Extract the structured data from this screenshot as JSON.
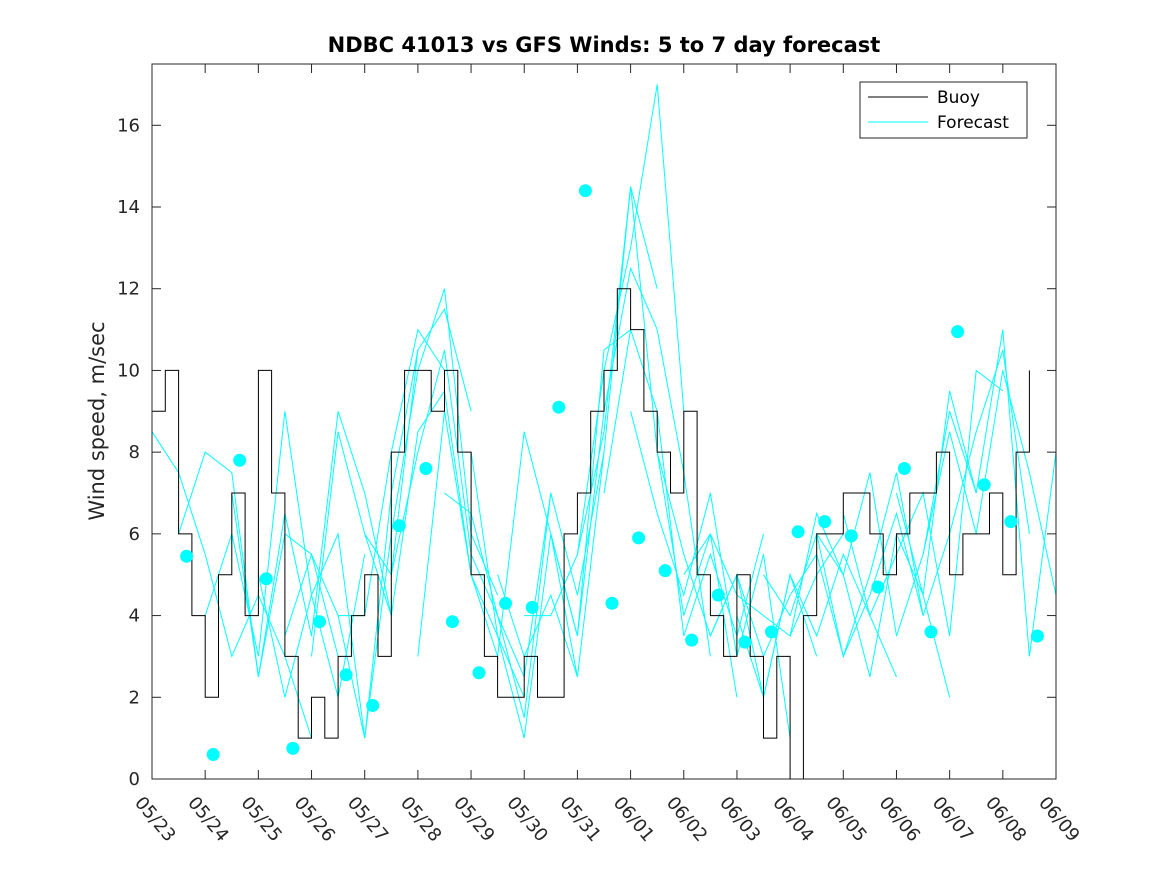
{
  "chart_data": {
    "type": "line",
    "title": "NDBC 41013 vs GFS Winds: 5 to 7 day forecast",
    "xlabel": "",
    "ylabel": "Wind speed, m/sec",
    "x_ticks": [
      "05/23",
      "05/24",
      "05/25",
      "05/26",
      "05/27",
      "05/28",
      "05/29",
      "05/30",
      "05/31",
      "06/01",
      "06/02",
      "06/03",
      "06/04",
      "06/05",
      "06/06",
      "06/07",
      "06/08",
      "06/09"
    ],
    "xlim_days": [
      0,
      17
    ],
    "ylim": [
      0,
      17.5
    ],
    "y_ticks": [
      0,
      2,
      4,
      6,
      8,
      10,
      12,
      14,
      16
    ],
    "grid": false,
    "legend_position": "top-right",
    "colors": {
      "buoy": "#000000",
      "forecast": "#00ffff"
    },
    "series": [
      {
        "name": "Buoy",
        "x_days": [
          0.0,
          0.25,
          0.5,
          0.75,
          1.0,
          1.25,
          1.5,
          1.75,
          2.0,
          2.25,
          2.5,
          2.75,
          3.0,
          3.25,
          3.5,
          3.75,
          4.0,
          4.25,
          4.5,
          4.75,
          5.0,
          5.25,
          5.5,
          5.75,
          6.0,
          6.25,
          6.5,
          6.75,
          7.0,
          7.25,
          7.5,
          7.75,
          8.0,
          8.25,
          8.5,
          8.75,
          9.0,
          9.25,
          9.5,
          9.75,
          10.0,
          10.25,
          10.5,
          10.75,
          11.0,
          11.25,
          11.5,
          11.75,
          12.0,
          12.25,
          12.5,
          12.75,
          13.0,
          13.25,
          13.5,
          13.75,
          14.0,
          14.25,
          14.5,
          14.75,
          15.0,
          15.25,
          15.5,
          15.75,
          16.0,
          16.25,
          16.5
        ],
        "values": [
          9,
          10,
          6,
          4,
          2,
          5,
          7,
          4,
          10,
          7,
          3,
          1,
          2,
          1,
          3,
          4,
          5,
          3,
          8,
          10,
          10,
          9,
          10,
          8,
          5,
          3,
          2,
          2,
          3,
          2,
          2,
          6,
          7,
          9,
          10,
          12,
          11,
          9,
          8,
          7,
          9,
          5,
          4,
          3,
          5,
          3,
          1,
          3,
          0,
          4,
          6,
          6,
          7,
          7,
          6,
          5,
          6,
          7,
          7,
          8,
          5,
          6,
          6,
          7,
          5,
          8,
          10
        ]
      },
      {
        "name": "Forecast",
        "runs": [
          {
            "x_days": [
              0.0,
              0.5,
              1.0,
              1.5,
              2.0,
              2.5,
              3.0
            ],
            "values": [
              8.5,
              7.5,
              5.5,
              3.0,
              4.5,
              3.0,
              1.0
            ]
          },
          {
            "x_days": [
              0.5,
              1.0,
              1.5,
              2.0,
              2.5,
              3.0,
              3.5
            ],
            "values": [
              6.0,
              8.0,
              7.5,
              2.5,
              6.0,
              5.5,
              3.0
            ]
          },
          {
            "x_days": [
              1.0,
              1.5,
              2.0,
              2.5,
              3.0,
              3.5,
              4.0
            ],
            "values": [
              4.0,
              6.0,
              3.0,
              9.0,
              4.5,
              2.0,
              5.5
            ]
          },
          {
            "x_days": [
              1.5,
              2.0,
              2.5,
              3.0,
              3.5,
              4.0,
              4.5
            ],
            "values": [
              7.0,
              2.5,
              6.5,
              3.5,
              9.0,
              7.0,
              4.0
            ]
          },
          {
            "x_days": [
              2.0,
              2.5,
              3.0,
              3.5,
              4.0,
              4.5,
              5.0
            ],
            "values": [
              5.0,
              2.0,
              4.5,
              6.0,
              1.0,
              7.0,
              10.5
            ]
          },
          {
            "x_days": [
              2.5,
              3.0,
              3.5,
              4.0,
              4.5,
              5.0,
              5.5
            ],
            "values": [
              3.5,
              5.5,
              4.0,
              4.0,
              8.0,
              11.0,
              10.0
            ]
          },
          {
            "x_days": [
              3.0,
              3.5,
              4.0,
              4.5,
              5.0,
              5.5,
              6.0
            ],
            "values": [
              3.0,
              8.5,
              6.0,
              5.0,
              10.5,
              11.5,
              9.0
            ]
          },
          {
            "x_days": [
              3.5,
              4.0,
              4.5,
              5.0,
              5.5,
              6.0,
              6.5
            ],
            "values": [
              4.0,
              1.0,
              6.0,
              10.0,
              12.0,
              6.0,
              4.5
            ]
          },
          {
            "x_days": [
              4.0,
              4.5,
              5.0,
              5.5,
              6.0,
              6.5,
              7.0
            ],
            "values": [
              6.0,
              4.0,
              8.5,
              9.5,
              5.0,
              3.5,
              2.0
            ]
          },
          {
            "x_days": [
              4.5,
              5.0,
              5.5,
              6.0,
              6.5,
              7.0,
              7.5
            ],
            "values": [
              5.0,
              8.0,
              10.5,
              5.5,
              4.0,
              1.5,
              7.0
            ]
          },
          {
            "x_days": [
              5.0,
              5.5,
              6.0,
              6.5,
              7.0,
              7.5,
              8.0
            ],
            "values": [
              3.0,
              9.0,
              5.0,
              3.0,
              8.5,
              6.0,
              2.5
            ]
          },
          {
            "x_days": [
              5.5,
              6.0,
              6.5,
              7.0,
              7.5,
              8.0,
              8.5
            ],
            "values": [
              7.0,
              6.5,
              4.0,
              2.5,
              7.0,
              4.5,
              8.0
            ]
          },
          {
            "x_days": [
              6.0,
              6.5,
              7.0,
              7.5,
              8.0,
              8.5,
              9.0
            ],
            "values": [
              8.0,
              3.5,
              1.0,
              6.0,
              3.5,
              10.5,
              11.0
            ]
          },
          {
            "x_days": [
              6.5,
              7.0,
              7.5,
              8.0,
              8.5,
              9.0,
              9.5
            ],
            "values": [
              5.0,
              3.0,
              4.5,
              2.5,
              8.0,
              14.5,
              12.0
            ]
          },
          {
            "x_days": [
              7.0,
              7.5,
              8.0,
              8.5,
              9.0,
              9.5,
              10.0
            ],
            "values": [
              4.0,
              4.0,
              5.5,
              10.0,
              13.0,
              17.0,
              9.0
            ]
          },
          {
            "x_days": [
              7.5,
              8.0,
              8.5,
              9.0,
              9.5,
              10.0,
              10.5
            ],
            "values": [
              6.0,
              3.5,
              9.0,
              12.5,
              11.0,
              7.5,
              3.0
            ]
          },
          {
            "x_days": [
              8.0,
              8.5,
              9.0,
              9.5,
              10.0,
              10.5,
              11.0
            ],
            "values": [
              5.5,
              8.5,
              14.5,
              8.0,
              4.0,
              6.0,
              2.0
            ]
          },
          {
            "x_days": [
              8.5,
              9.0,
              9.5,
              10.0,
              10.5,
              11.0,
              11.5
            ],
            "values": [
              7.0,
              11.0,
              9.0,
              3.5,
              5.5,
              3.5,
              6.0
            ]
          },
          {
            "x_days": [
              9.0,
              9.5,
              10.0,
              10.5,
              11.0,
              11.5,
              12.0
            ],
            "values": [
              9.0,
              6.5,
              4.5,
              7.0,
              3.0,
              5.5,
              1.0
            ]
          },
          {
            "x_days": [
              9.5,
              10.0,
              10.5,
              11.0,
              11.5,
              12.0,
              12.5
            ],
            "values": [
              8.0,
              5.5,
              3.5,
              5.0,
              2.0,
              5.0,
              3.0
            ]
          },
          {
            "x_days": [
              10.0,
              10.5,
              11.0,
              11.5,
              12.0,
              12.5,
              13.0
            ],
            "values": [
              5.0,
              6.0,
              4.5,
              4.0,
              3.5,
              5.0,
              6.0
            ]
          },
          {
            "x_days": [
              10.5,
              11.0,
              11.5,
              12.0,
              12.5,
              13.0,
              13.5
            ],
            "values": [
              3.5,
              5.0,
              3.0,
              4.5,
              5.5,
              3.0,
              5.0
            ]
          },
          {
            "x_days": [
              11.0,
              11.5,
              12.0,
              12.5,
              13.0,
              13.5,
              14.0
            ],
            "values": [
              4.0,
              2.0,
              5.0,
              3.5,
              5.5,
              4.0,
              2.5
            ]
          },
          {
            "x_days": [
              11.5,
              12.0,
              12.5,
              13.0,
              13.5,
              14.0,
              14.5
            ],
            "values": [
              5.0,
              4.0,
              6.0,
              3.0,
              4.5,
              6.5,
              4.0
            ]
          },
          {
            "x_days": [
              12.0,
              12.5,
              13.0,
              13.5,
              14.0,
              14.5,
              15.0
            ],
            "values": [
              3.5,
              6.5,
              5.0,
              2.5,
              6.0,
              4.5,
              2.0
            ]
          },
          {
            "x_days": [
              12.5,
              13.0,
              13.5,
              14.0,
              14.5,
              15.0,
              15.5
            ],
            "values": [
              6.0,
              5.0,
              7.5,
              3.5,
              5.5,
              9.0,
              7.0
            ]
          },
          {
            "x_days": [
              13.0,
              13.5,
              14.0,
              14.5,
              15.0,
              15.5,
              16.0
            ],
            "values": [
              6.5,
              4.0,
              5.5,
              7.0,
              3.5,
              10.0,
              9.5
            ]
          },
          {
            "x_days": [
              13.5,
              14.0,
              14.5,
              15.0,
              15.5,
              16.0,
              16.5
            ],
            "values": [
              5.0,
              7.5,
              4.0,
              6.0,
              8.5,
              10.5,
              6.0
            ]
          },
          {
            "x_days": [
              14.0,
              14.5,
              15.0,
              15.5,
              16.0,
              16.5,
              17.0
            ],
            "values": [
              7.0,
              4.5,
              9.5,
              7.0,
              11.0,
              3.0,
              8.0
            ]
          },
          {
            "x_days": [
              14.5,
              15.0,
              15.5,
              16.0,
              16.5,
              17.0
            ],
            "values": [
              5.5,
              8.5,
              6.0,
              10.0,
              7.5,
              4.5
            ]
          }
        ],
        "markers": {
          "x_days": [
            0.65,
            1.15,
            1.65,
            2.15,
            2.65,
            3.15,
            3.65,
            4.15,
            4.65,
            5.15,
            5.65,
            6.15,
            6.65,
            7.15,
            7.65,
            8.15,
            8.65,
            9.15,
            9.65,
            10.15,
            10.65,
            11.15,
            11.65,
            12.15,
            12.65,
            13.15,
            13.65,
            14.15,
            14.65,
            15.15,
            15.65,
            16.15,
            16.65
          ],
          "values": [
            5.45,
            0.6,
            7.8,
            4.9,
            0.75,
            3.85,
            2.55,
            1.8,
            6.2,
            7.6,
            3.85,
            2.6,
            4.3,
            4.2,
            9.1,
            14.4,
            4.3,
            5.9,
            5.1,
            3.4,
            4.5,
            3.35,
            3.6,
            6.05,
            6.3,
            5.95,
            4.7,
            7.6,
            3.6,
            10.95,
            7.2,
            6.3,
            3.5
          ]
        }
      }
    ]
  }
}
